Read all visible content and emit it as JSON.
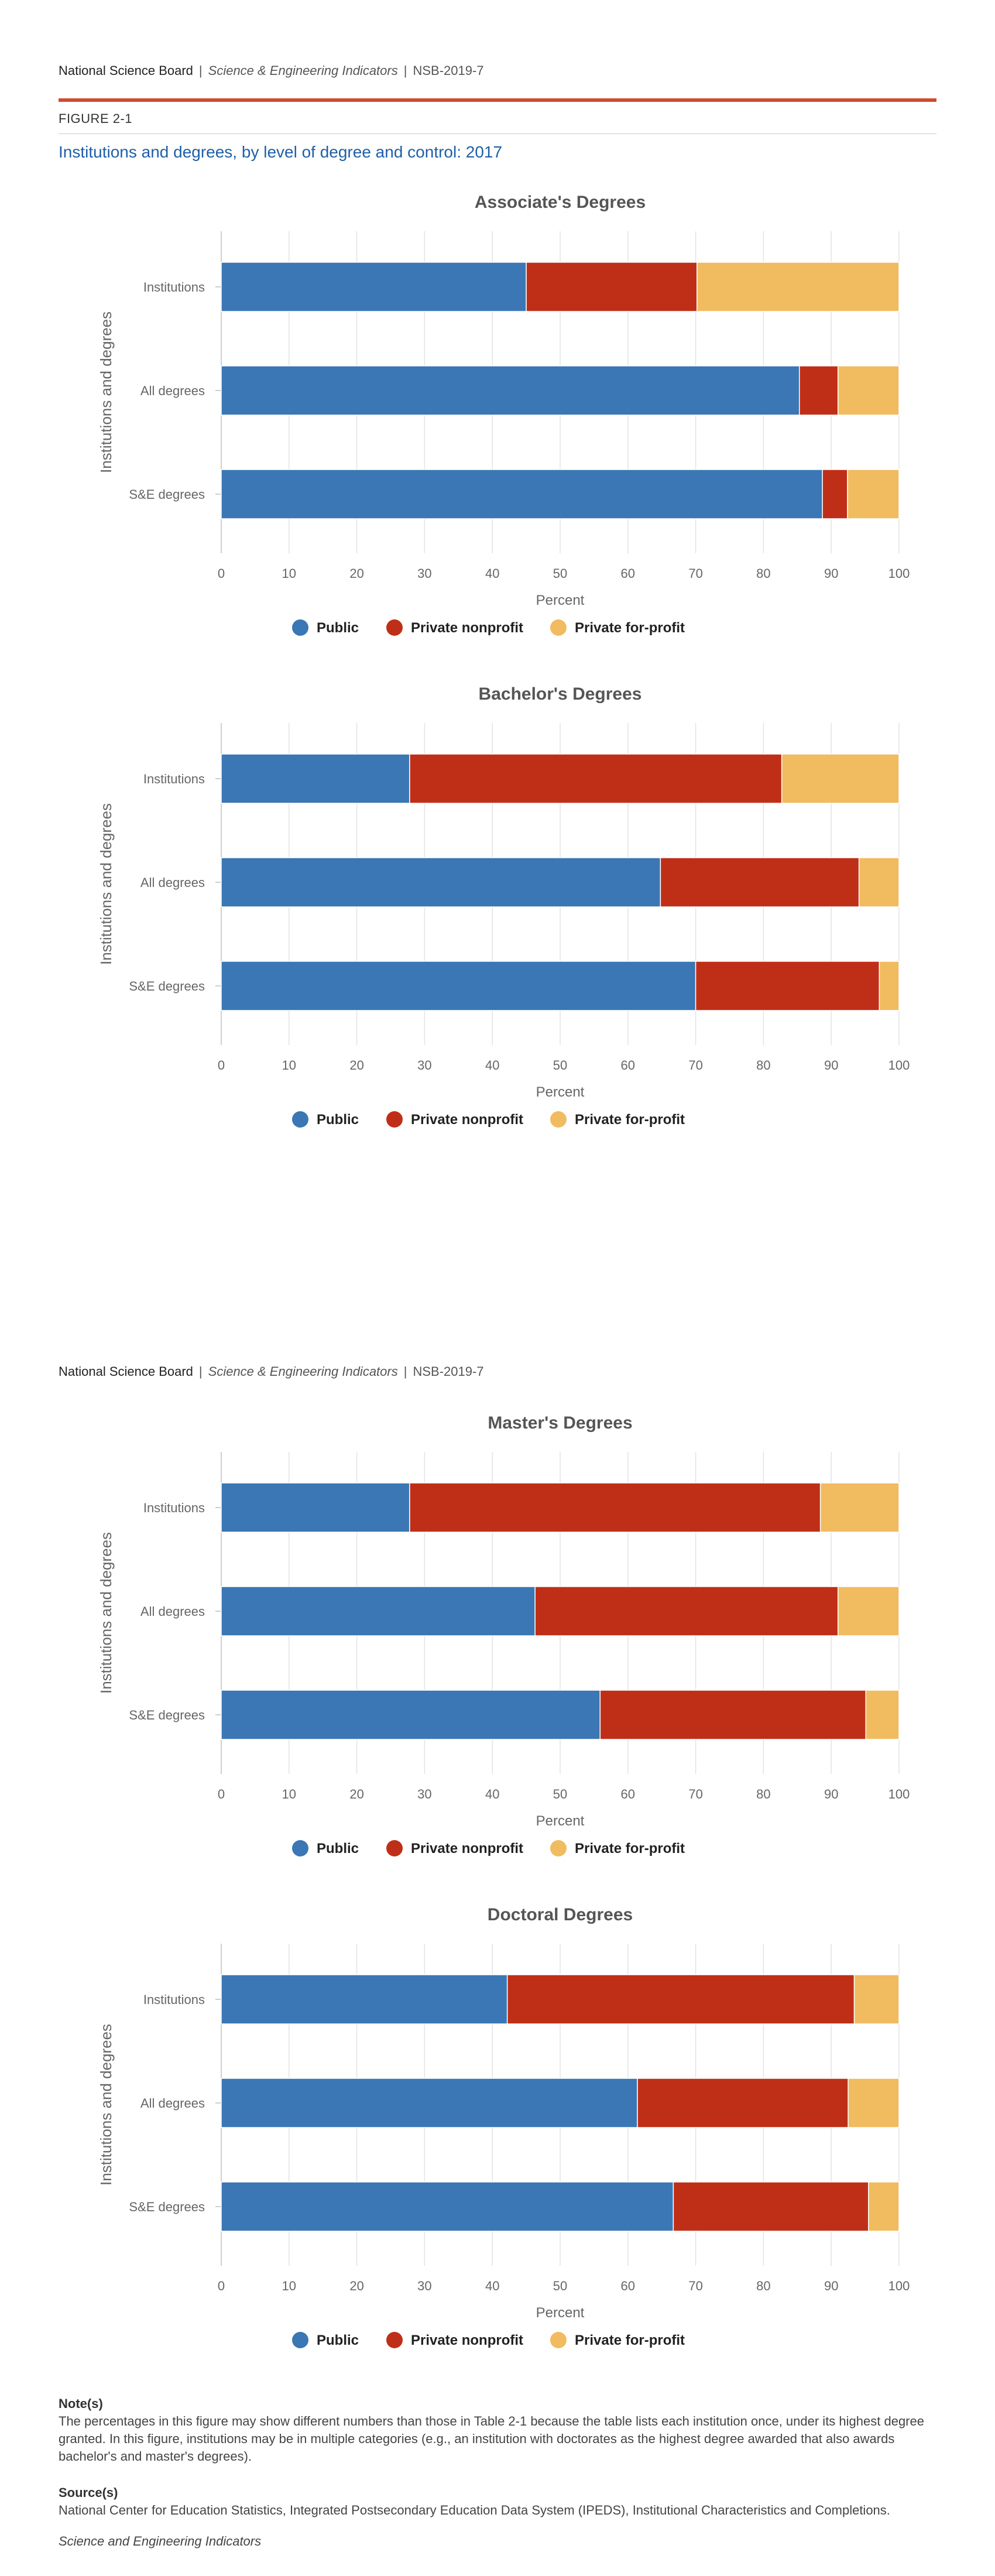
{
  "header": {
    "org": "National Science Board",
    "separator": "|",
    "publication": "Science & Engineering Indicators",
    "report": "NSB-2019-7"
  },
  "figure": {
    "number": "FIGURE 2-1",
    "title": "Institutions and degrees, by level of degree and control: 2017"
  },
  "colors": {
    "public": "#3a77b4",
    "private_nonprofit": "#bf2f18",
    "private_forprofit": "#f1bb60"
  },
  "chart_data": [
    {
      "type": "bar",
      "orientation": "horizontal",
      "stacked": true,
      "title": "Associate's Degrees",
      "xlabel": "Percent",
      "ylabel": "Institutions and degrees",
      "xlim": [
        0,
        100
      ],
      "xticks": [
        "0",
        "10",
        "20",
        "30",
        "40",
        "50",
        "60",
        "70",
        "80",
        "90",
        "100"
      ],
      "categories": [
        "Institutions",
        "All degrees",
        "S&E degrees"
      ],
      "series": [
        {
          "name": "Public",
          "values": [
            45,
            85.3,
            88.7
          ]
        },
        {
          "name": "Private nonprofit",
          "values": [
            25.2,
            5.7,
            3.7
          ]
        },
        {
          "name": "Private for-profit",
          "values": [
            29.8,
            9,
            7.6
          ]
        }
      ],
      "grid": true,
      "legend": "bottom"
    },
    {
      "type": "bar",
      "orientation": "horizontal",
      "stacked": true,
      "title": "Bachelor's Degrees",
      "xlabel": "Percent",
      "ylabel": "Institutions and degrees",
      "xlim": [
        0,
        100
      ],
      "xticks": [
        "0",
        "10",
        "20",
        "30",
        "40",
        "50",
        "60",
        "70",
        "80",
        "90",
        "100"
      ],
      "categories": [
        "Institutions",
        "All degrees",
        "S&E degrees"
      ],
      "series": [
        {
          "name": "Public",
          "values": [
            27.8,
            64.8,
            70
          ]
        },
        {
          "name": "Private nonprofit",
          "values": [
            54.9,
            29.3,
            27.1
          ]
        },
        {
          "name": "Private for-profit",
          "values": [
            17.3,
            5.9,
            2.9
          ]
        }
      ],
      "grid": true,
      "legend": "bottom"
    },
    {
      "type": "bar",
      "orientation": "horizontal",
      "stacked": true,
      "title": "Master's Degrees",
      "xlabel": "Percent",
      "ylabel": "Institutions and degrees",
      "xlim": [
        0,
        100
      ],
      "xticks": [
        "0",
        "10",
        "20",
        "30",
        "40",
        "50",
        "60",
        "70",
        "80",
        "90",
        "100"
      ],
      "categories": [
        "Institutions",
        "All degrees",
        "S&E degrees"
      ],
      "series": [
        {
          "name": "Public",
          "values": [
            27.8,
            46.3,
            55.9
          ]
        },
        {
          "name": "Private nonprofit",
          "values": [
            60.6,
            44.7,
            39.2
          ]
        },
        {
          "name": "Private for-profit",
          "values": [
            11.6,
            9,
            4.9
          ]
        }
      ],
      "grid": true,
      "legend": "bottom"
    },
    {
      "type": "bar",
      "orientation": "horizontal",
      "stacked": true,
      "title": "Doctoral Degrees",
      "xlabel": "Percent",
      "ylabel": "Institutions and degrees",
      "xlim": [
        0,
        100
      ],
      "xticks": [
        "0",
        "10",
        "20",
        "30",
        "40",
        "50",
        "60",
        "70",
        "80",
        "90",
        "100"
      ],
      "categories": [
        "Institutions",
        "All degrees",
        "S&E degrees"
      ],
      "series": [
        {
          "name": "Public",
          "values": [
            42.2,
            61.4,
            66.7
          ]
        },
        {
          "name": "Private nonprofit",
          "values": [
            51.2,
            31.1,
            28.8
          ]
        },
        {
          "name": "Private for-profit",
          "values": [
            6.6,
            7.5,
            4.5
          ]
        }
      ],
      "grid": true,
      "legend": "bottom"
    }
  ],
  "notes": {
    "note_heading": "Note(s)",
    "note_text": "The percentages in this figure may show different numbers than those in Table 2-1 because the table lists each institution once, under its highest degree granted. In this figure, institutions may be in multiple categories (e.g., an institution with doctorates as the highest degree awarded that also awards bachelor's and master's degrees).",
    "source_heading": "Source(s)",
    "source_text": "National Center for Education Statistics, Integrated Postsecondary Education Data System (IPEDS), Institutional Characteristics and Completions.",
    "footer": "Science and Engineering Indicators"
  }
}
